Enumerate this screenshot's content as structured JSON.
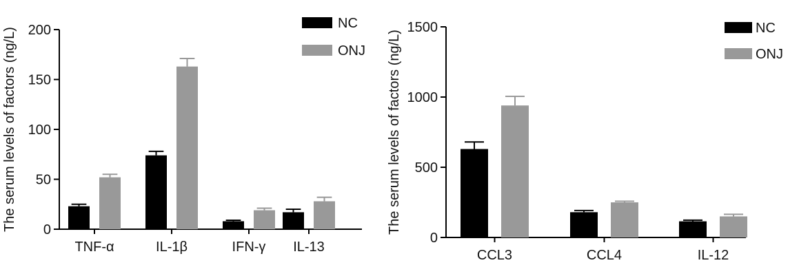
{
  "chart_data": [
    {
      "type": "bar",
      "title": "",
      "xlabel": "",
      "ylabel": "The serum levels of factors (ng/L)",
      "ylim": [
        0,
        200
      ],
      "yticks": [
        0,
        50,
        100,
        150,
        200
      ],
      "categories": [
        "TNF-α",
        "IL-1β",
        "IFN-γ",
        "IL-13"
      ],
      "legend_position": "top-right",
      "series": [
        {
          "name": "NC",
          "color": "#000000",
          "values": [
            23,
            74,
            8,
            17
          ],
          "errors": [
            2,
            4,
            1,
            3
          ]
        },
        {
          "name": "ONJ",
          "color": "#999999",
          "values": [
            52,
            163,
            19,
            28
          ],
          "errors": [
            3,
            8,
            2,
            4
          ]
        }
      ]
    },
    {
      "type": "bar",
      "title": "",
      "xlabel": "",
      "ylabel": "The serum levels of factors (ng/L)",
      "ylim": [
        0,
        1500
      ],
      "yticks": [
        0,
        500,
        1000,
        1500
      ],
      "categories": [
        "CCL3",
        "CCL4",
        "IL-12"
      ],
      "legend_position": "top-right",
      "series": [
        {
          "name": "NC",
          "color": "#000000",
          "values": [
            630,
            180,
            115
          ],
          "errors": [
            50,
            12,
            8
          ]
        },
        {
          "name": "ONJ",
          "color": "#999999",
          "values": [
            940,
            250,
            150
          ],
          "errors": [
            65,
            8,
            15
          ]
        }
      ]
    }
  ]
}
